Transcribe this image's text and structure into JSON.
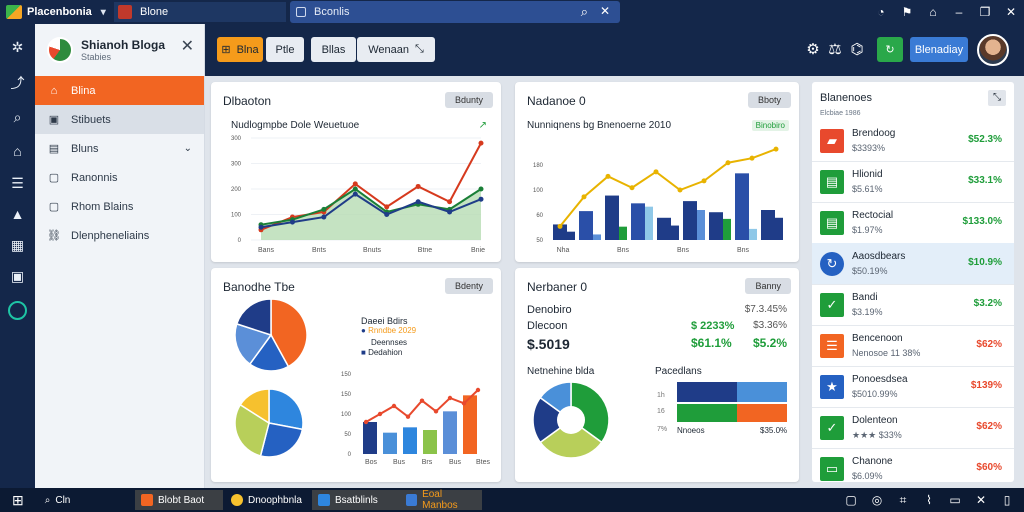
{
  "titlebar": {
    "app_name": "Placenbonia",
    "tab_label": "Blone",
    "search_text": "Bconlis",
    "icons": [
      "search-icon",
      "tools-icon",
      "gauge-icon",
      "notification-icon",
      "lock-icon",
      "minimize-icon",
      "restore-icon",
      "close-icon"
    ]
  },
  "rail": {
    "icons": [
      "network-icon",
      "chart-icon",
      "search-icon",
      "home-icon",
      "list-icon",
      "building-icon",
      "grid-icon",
      "card-icon",
      "circle-icon"
    ]
  },
  "sidepanel": {
    "name": "Shianoh Bloga",
    "sub": "Stabies",
    "items": [
      {
        "label": "Blina",
        "icon": "home-icon",
        "state": "active"
      },
      {
        "label": "Stibuets",
        "icon": "box-icon",
        "state": "hover"
      },
      {
        "label": "Bluns",
        "icon": "folder-icon",
        "state": "",
        "chevron": "⌄"
      },
      {
        "label": "Ranonnis",
        "icon": "page-icon",
        "state": ""
      },
      {
        "label": "Rhom Blains",
        "icon": "page-icon",
        "state": ""
      },
      {
        "label": "Dlenpheneliains",
        "icon": "link-icon",
        "state": ""
      }
    ]
  },
  "toolbar": {
    "btn1": "Blna",
    "btn2": "Ptle",
    "btn3": "Bllas",
    "btn4": "Wenaan",
    "btn5": "Blenadiay"
  },
  "cards": {
    "c1": {
      "title": "Dlbaoton",
      "btn": "Bdunty",
      "subtitle": "Nudlogmpbe Dole  Weuetuoe",
      "legend": "↗"
    },
    "c2": {
      "title": "Nadanoe  0",
      "btn": "Bboty",
      "subtitle": "Nunniqnens bg  Bnenoerne 2010",
      "legend": "Binobiro"
    },
    "c3": {
      "title": "Banodhe Tbe",
      "btn": "Bdenty",
      "legend_title": "Daeei Bdirs",
      "legend_items": [
        "Rnndbe 2029",
        "Deennses",
        "Dedahion"
      ]
    },
    "c4": {
      "title": "Nerbaner  0",
      "btn": "Banny",
      "l1": "Denobiro",
      "l2": "Dlecoon",
      "big": "$.5019",
      "r1a": "$7.3.45%",
      "r1b": "$ 2233%",
      "r1c": "$3.36%",
      "r2a": "$61.1%",
      "r2b": "$5.2%",
      "sec1": "Netnehine blda",
      "sec2": "Pacedlans",
      "bar_axis": [
        "1h",
        "16",
        "7%"
      ],
      "bar_caption": "Nnoeos",
      "bar_value": "$35.0%"
    }
  },
  "rpanel": {
    "title": "Blanenoes",
    "meta": "Elcbiae 1986",
    "rows": [
      {
        "name": "Brendoog",
        "sub": "$3393%",
        "value": "$52.3%",
        "icon": "chip-icon",
        "color": "#e8492d",
        "value_color": "#1f9d3a"
      },
      {
        "name": "Hlionid",
        "sub": "$5.61%",
        "value": "$33.1%",
        "icon": "chart-icon",
        "color": "#1f9d3a",
        "value_color": "#1f9d3a"
      },
      {
        "name": "Rectocial",
        "sub": "$1.97%",
        "value": "$133.0%",
        "icon": "chart-icon",
        "color": "#1f9d3a",
        "value_color": "#1f9d3a"
      },
      {
        "name": "Aaosdbears",
        "sub": "$50.19%",
        "value": "$10.9%",
        "icon": "refresh-icon",
        "color": "#2561c2",
        "value_color": "#1f9d3a",
        "highlight": true
      },
      {
        "name": "Bandi",
        "sub": "$3.19%",
        "value": "$3.2%",
        "icon": "check-icon",
        "color": "#1f9d3a",
        "value_color": "#1f9d3a"
      },
      {
        "name": "Bencenoon",
        "sub": "Nenosoe 11 38%",
        "value": "$62%",
        "icon": "list-icon",
        "color": "#f26522",
        "value_color": "#e8492d"
      },
      {
        "name": "Ponoesdsea",
        "sub": "$5010.99%",
        "value": "$139%",
        "icon": "star-icon",
        "color": "#2561c2",
        "value_color": "#e8492d"
      },
      {
        "name": "Dolenteon",
        "sub": "★★★ $33%",
        "value": "$62%",
        "icon": "doc-icon",
        "color": "#1f9d3a",
        "value_color": "#e8492d"
      },
      {
        "name": "Chanone",
        "sub": "$6.09%",
        "value": "$60%",
        "icon": "window-icon",
        "color": "#1f9d3a",
        "value_color": "#e8492d"
      }
    ]
  },
  "taskbar": {
    "start": "Cln",
    "items": [
      "Blobt Baot",
      "Dnoophbnla",
      "Bsatblinls",
      "Eoal Manbos"
    ]
  },
  "chart_data": [
    {
      "type": "line",
      "title": "Nudlogmpbe Dole  Weuetuoe",
      "x_ticks": [
        "Bans",
        "Bnts",
        "Bnuts",
        "Btne",
        "Bnie"
      ],
      "y_ticks": [
        "0",
        "100",
        "200",
        "300",
        "300"
      ],
      "series": [
        {
          "values": [
            40,
            90,
            110,
            220,
            130,
            210,
            150,
            380
          ],
          "color": "#d63a1e"
        },
        {
          "values": [
            60,
            80,
            120,
            200,
            110,
            140,
            120,
            200
          ],
          "color": "#1a7f37"
        },
        {
          "values": [
            50,
            70,
            90,
            180,
            100,
            150,
            110,
            160
          ],
          "color": "#1f3c88"
        }
      ]
    },
    {
      "type": "bar",
      "title": "Nunniqnens bg  Bnenoerne 2010",
      "x_ticks": [
        "Nha",
        "Bns",
        "Bns",
        "Bns"
      ],
      "y_ticks": [
        "50",
        "60",
        "100",
        "180"
      ],
      "bars": [
        [
          28,
          15
        ],
        [
          52,
          10
        ],
        [
          80,
          24
        ],
        [
          66,
          60
        ],
        [
          40,
          26
        ],
        [
          70,
          54
        ],
        [
          50,
          38
        ],
        [
          120,
          20
        ],
        [
          54,
          40
        ]
      ],
      "line": [
        30,
        95,
        140,
        115,
        150,
        110,
        130,
        170,
        180,
        200
      ]
    },
    {
      "type": "pie",
      "slices": [
        {
          "value": 42,
          "color": "#f26522"
        },
        {
          "value": 18,
          "color": "#2561c2"
        },
        {
          "value": 20,
          "color": "#5b8fd8"
        },
        {
          "value": 20,
          "color": "#1f3c88"
        }
      ]
    },
    {
      "type": "pie",
      "slices": [
        {
          "value": 28,
          "color": "#2e86de"
        },
        {
          "value": 26,
          "color": "#2561c2"
        },
        {
          "value": 30,
          "color": "#b8cf5a"
        },
        {
          "value": 16,
          "color": "#f6c12e"
        }
      ]
    },
    {
      "type": "bar",
      "x_ticks": [
        "Bos",
        "Bus",
        "Brs",
        "Bus",
        "Btes"
      ],
      "y_ticks": [
        "0",
        "50",
        "100",
        "150",
        "150"
      ],
      "bars": [
        [
          60,
          "#1f3c88"
        ],
        [
          40,
          "#4a90d9"
        ],
        [
          50,
          "#2e86de"
        ],
        [
          45,
          "#8bc34a"
        ],
        [
          80,
          "#5b8fd8"
        ],
        [
          110,
          "#f26522"
        ]
      ],
      "line": [
        60,
        75,
        90,
        70,
        100,
        80,
        105,
        95,
        120
      ]
    },
    {
      "type": "pie",
      "slices": [
        {
          "value": 35,
          "color": "#1f9d3a"
        },
        {
          "value": 30,
          "color": "#b8cf5a"
        },
        {
          "value": 20,
          "color": "#1f3c88"
        },
        {
          "value": 15,
          "color": "#4a90d9"
        }
      ]
    }
  ]
}
